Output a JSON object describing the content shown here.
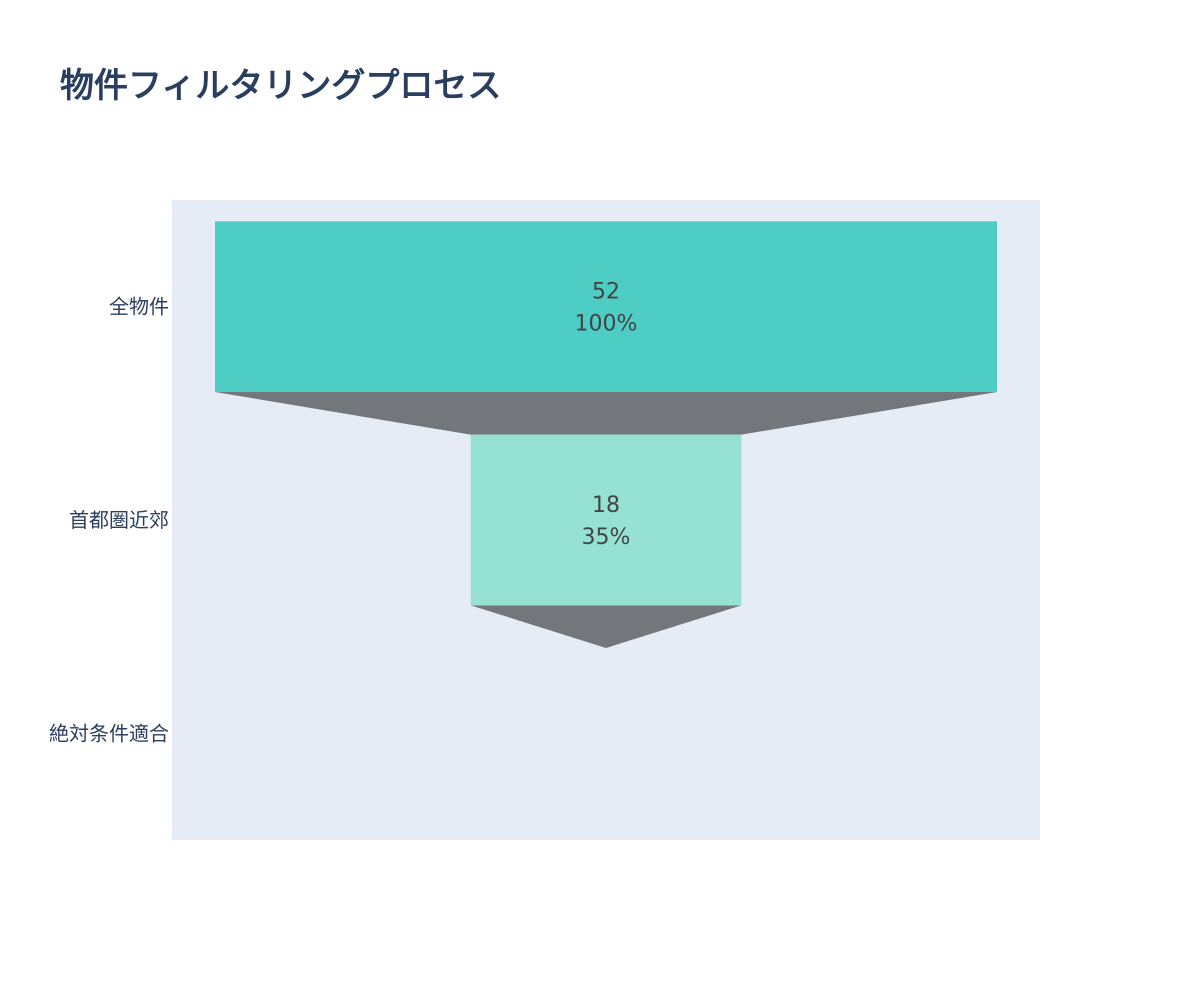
{
  "chart_data": {
    "type": "funnel",
    "title": "物件フィルタリングプロセス",
    "categories": [
      "全物件",
      "首都圏近郊",
      "絶対条件適合"
    ],
    "values": [
      52,
      18,
      0
    ],
    "percent_initial": [
      "100%",
      "35%",
      "0%"
    ],
    "bar_colors": [
      "#4ecdc4",
      "#95e1d3",
      "#f38181"
    ],
    "connector_color": "#73767b",
    "plot_bgcolor": "#e5ecf6",
    "text_color": "#444444"
  }
}
